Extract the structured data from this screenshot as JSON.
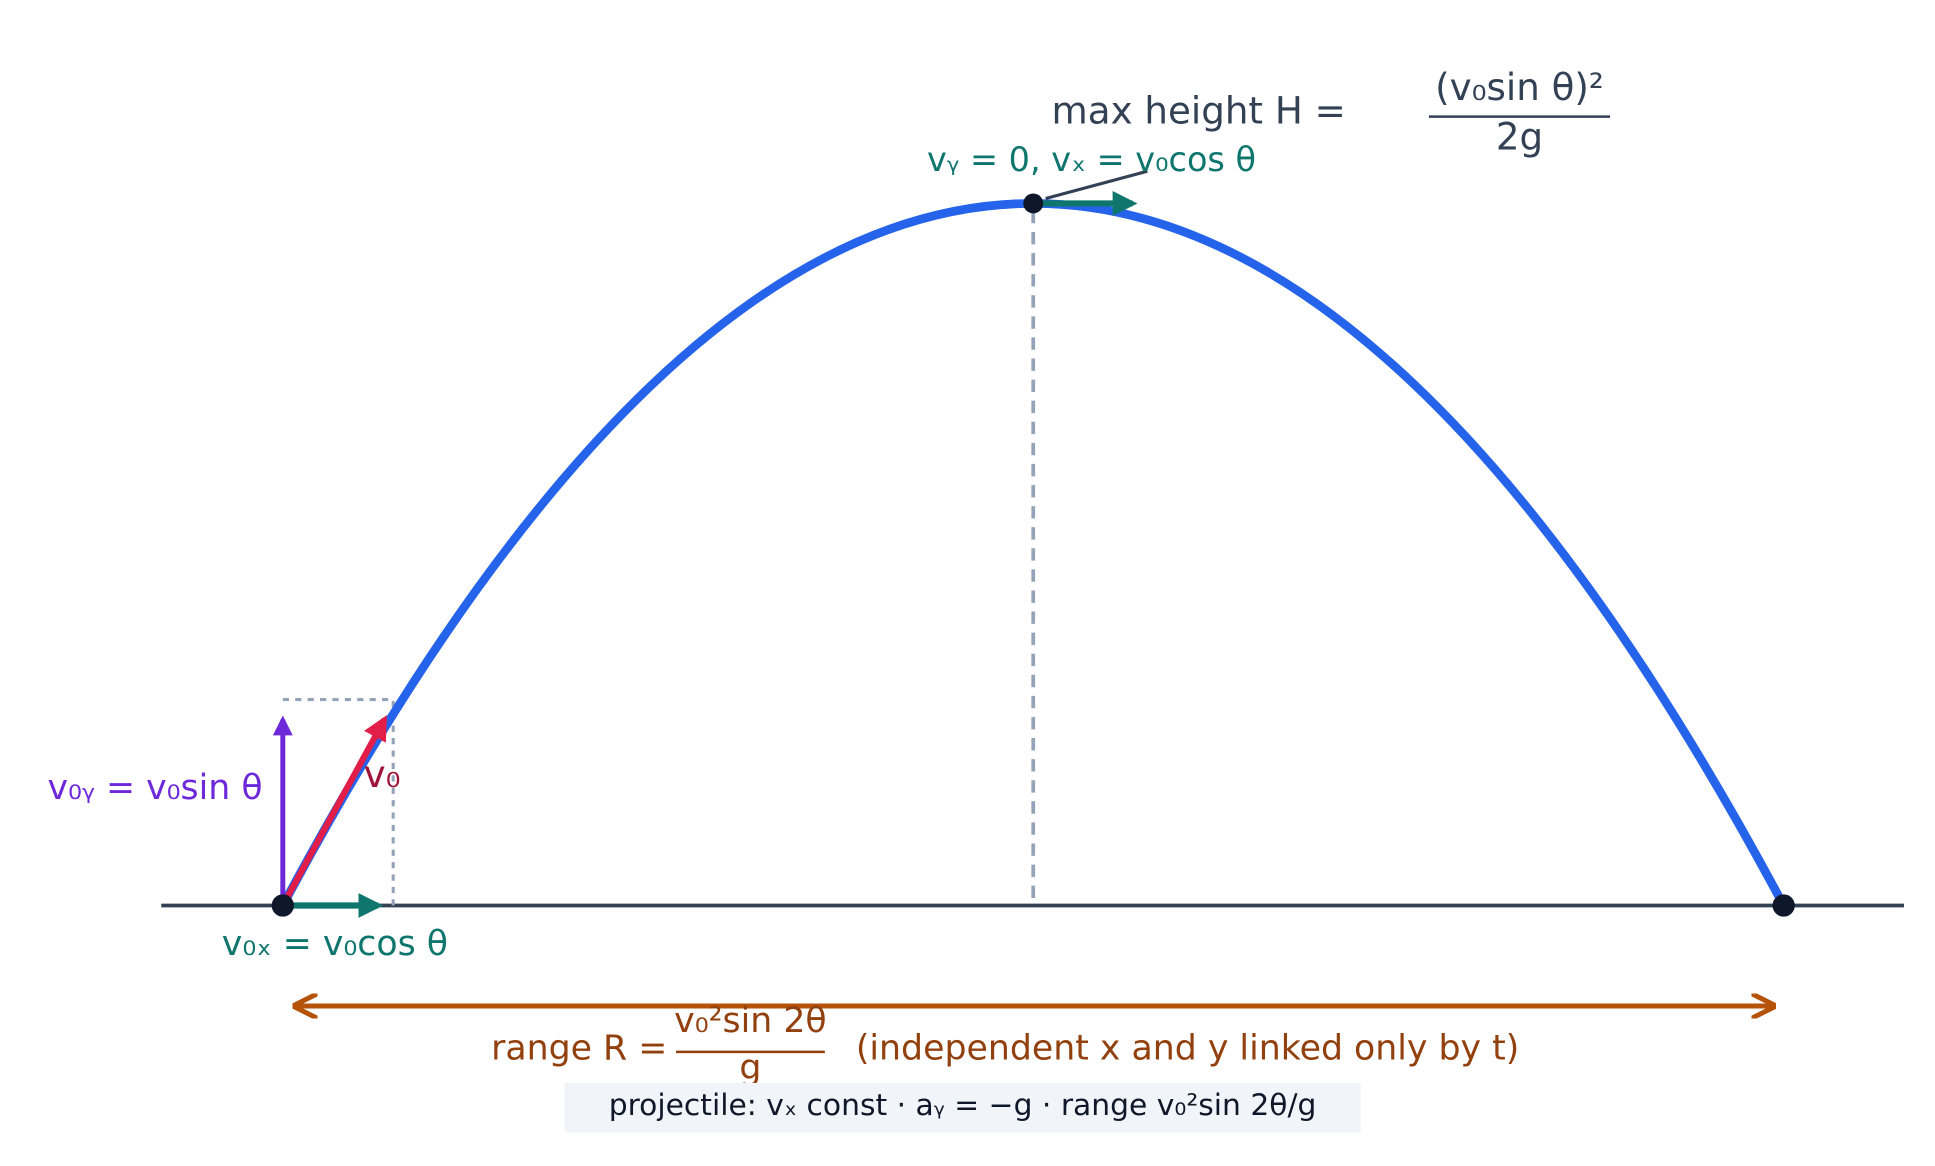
{
  "labels": {
    "max_height": {
      "text": "max height H =",
      "numerator": "(v₀sin θ)²",
      "denominator": "2g"
    },
    "apex": "vᵧ = 0,  vₓ = v₀cos θ",
    "v0y": "v₀ᵧ = v₀sin θ",
    "v0": "v₀",
    "v0x": "v₀ₓ = v₀cos θ",
    "range": {
      "prefix": "range R =",
      "numerator": "v₀²sin 2θ",
      "denominator": "g",
      "suffix": "(independent x and y linked only by t)"
    },
    "caption": "projectile: vₓ const  ·  aᵧ = −g  ·  range v₀²sin 2θ/g"
  }
}
